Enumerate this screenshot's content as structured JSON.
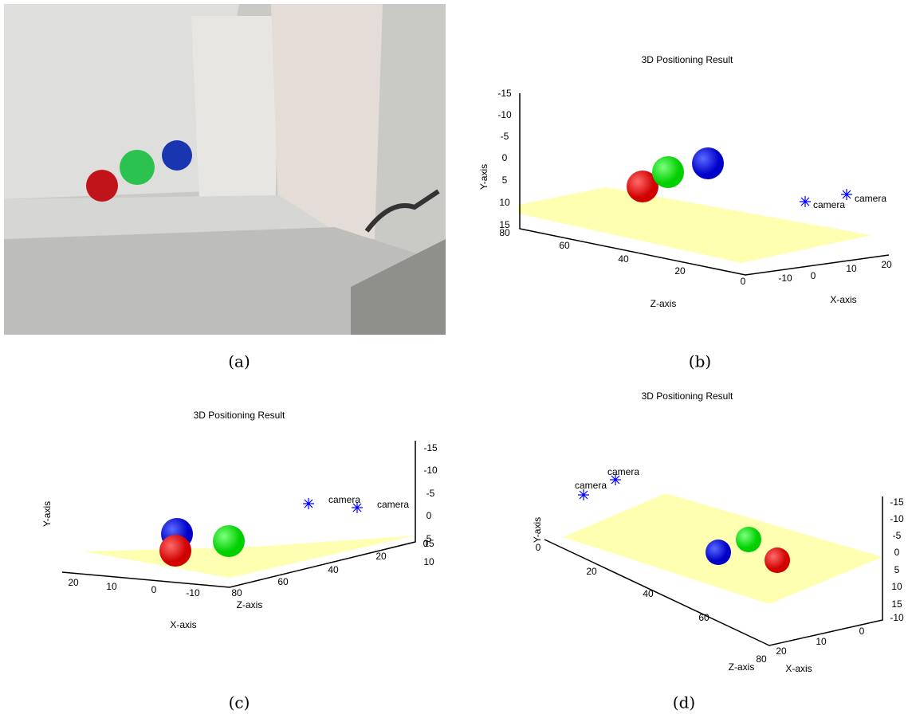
{
  "panels": [
    {
      "caption": "(a)"
    },
    {
      "caption": "(b)",
      "title": "3D Positioning Result",
      "x_label": "X-axis",
      "y_label": "Y-axis",
      "z_label": "Z-axis",
      "x_ticks": [
        -10,
        0,
        10,
        20
      ],
      "y_ticks": [
        -15,
        -10,
        -5,
        0,
        5,
        10,
        15
      ],
      "z_ticks": [
        0,
        20,
        40,
        60,
        80
      ],
      "markers": [
        "camera",
        "camera"
      ]
    },
    {
      "caption": "(c)",
      "title": "3D Positioning Result",
      "x_label": "X-axis",
      "y_label": "Y-axis",
      "z_label": "Z-axis",
      "x_ticks": [
        -10,
        0,
        10,
        20
      ],
      "y_ticks": [
        -15,
        -10,
        -5,
        0,
        5,
        10,
        15
      ],
      "z_ticks": [
        0,
        20,
        40,
        60,
        80
      ],
      "markers": [
        "camera",
        "camera"
      ]
    },
    {
      "caption": "(d)",
      "title": "3D Positioning Result",
      "x_label": "X-axis",
      "y_label": "Y-axis",
      "z_label": "Z-axis",
      "x_ticks": [
        -10,
        0,
        10,
        20
      ],
      "y_ticks": [
        -15,
        -10,
        -5,
        0,
        5,
        10,
        15
      ],
      "z_ticks": [
        0,
        20,
        40,
        60,
        80
      ],
      "markers": [
        "camera",
        "camera"
      ]
    }
  ]
}
